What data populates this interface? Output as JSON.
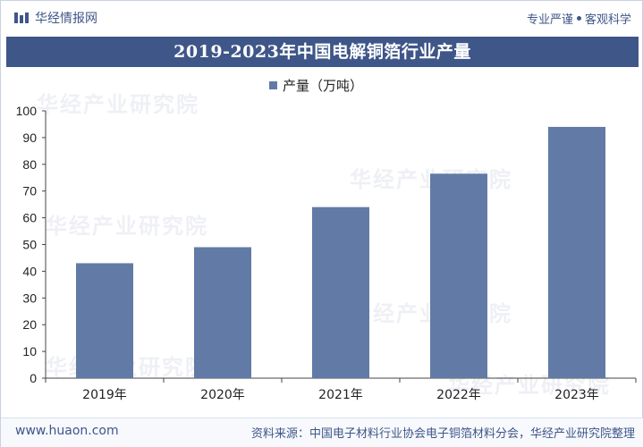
{
  "header": {
    "brand": "华经情报网",
    "slogan_left": "专业严谨",
    "slogan_right": "客观科学"
  },
  "watermark_text": "华经产业研究院",
  "footer": {
    "url": "www.huaon.com",
    "source": "资料来源：中国电子材料行业协会电子铜箔材料分会，华经产业研究院整理"
  },
  "colors": {
    "bar": "#627aa6",
    "title_bg": "#3f5689",
    "axis": "#444444"
  },
  "chart_data": {
    "type": "bar",
    "title": "2019-2023年中国电解铜箔行业产量",
    "categories": [
      "2019年",
      "2020年",
      "2021年",
      "2022年",
      "2023年"
    ],
    "series": [
      {
        "name": "产量（万吨）",
        "values": [
          43,
          49,
          64,
          76.5,
          94
        ]
      }
    ],
    "xlabel": "",
    "ylabel": "",
    "ylim": [
      0,
      100
    ],
    "yticks": [
      "0",
      "10",
      "20",
      "30",
      "40",
      "50",
      "60",
      "70",
      "80",
      "90",
      "100"
    ],
    "grid": false,
    "legend_position": "top-center"
  }
}
